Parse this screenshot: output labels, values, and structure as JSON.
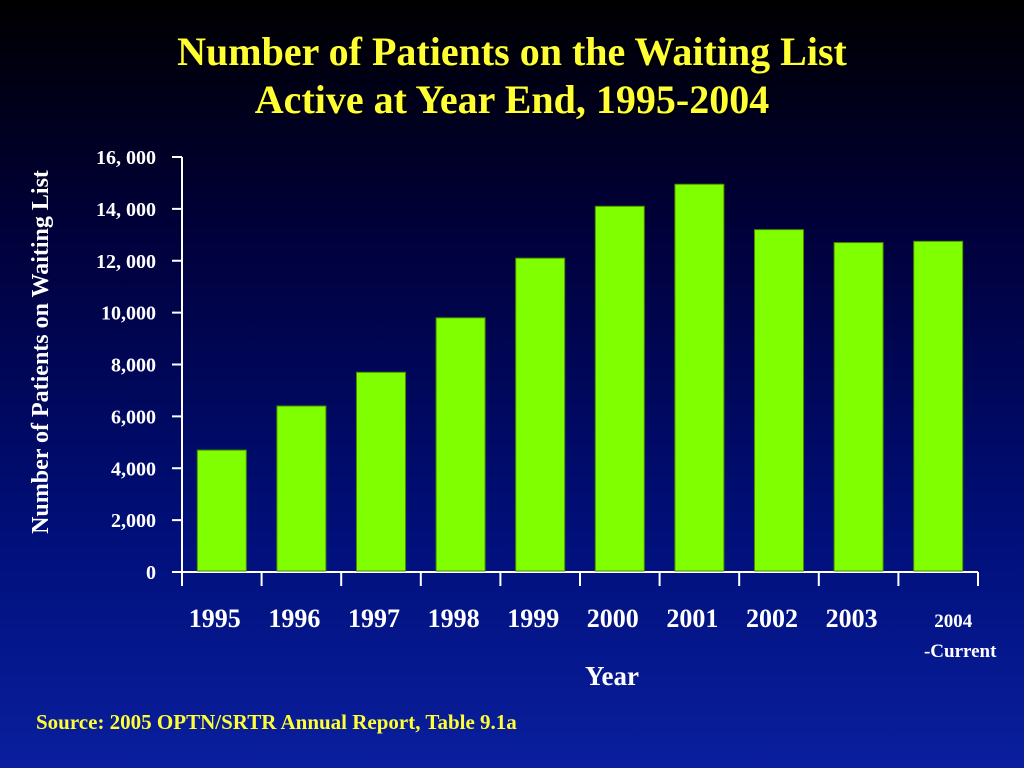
{
  "slide": {
    "title_line1": "Number of Patients on the Waiting List",
    "title_line2": "Active at Year End, 1995-2004",
    "source": "Source: 2005 OPTN/SRTR Annual Report, Table 9.1a"
  },
  "colors": {
    "bar": "#80ff00",
    "title": "#ffff33",
    "axis": "#ffffff",
    "background_top": "#000000",
    "background_bottom": "#0a1f9e"
  },
  "chart_data": {
    "type": "bar",
    "title": "Number of Patients on the Waiting List Active at Year End, 1995-2004",
    "xlabel": "Year",
    "ylabel": "Number of Patients on Waiting List",
    "categories": [
      "1995",
      "1996",
      "1997",
      "1998",
      "1999",
      "2000",
      "2001",
      "2002",
      "2003",
      [
        "2004",
        "-Current"
      ]
    ],
    "values": [
      4700,
      6400,
      7700,
      9800,
      12100,
      14100,
      14950,
      13200,
      12700,
      12750
    ],
    "ylim": [
      0,
      16000
    ],
    "yticks": [
      0,
      2000,
      4000,
      6000,
      8000,
      10000,
      12000,
      14000,
      16000
    ],
    "ytick_labels": [
      "0",
      "2,000",
      "4,000",
      "6,000",
      "8,000",
      "10,000",
      "12, 000",
      "14, 000",
      "16, 000"
    ],
    "grid": false,
    "legend": "none"
  }
}
